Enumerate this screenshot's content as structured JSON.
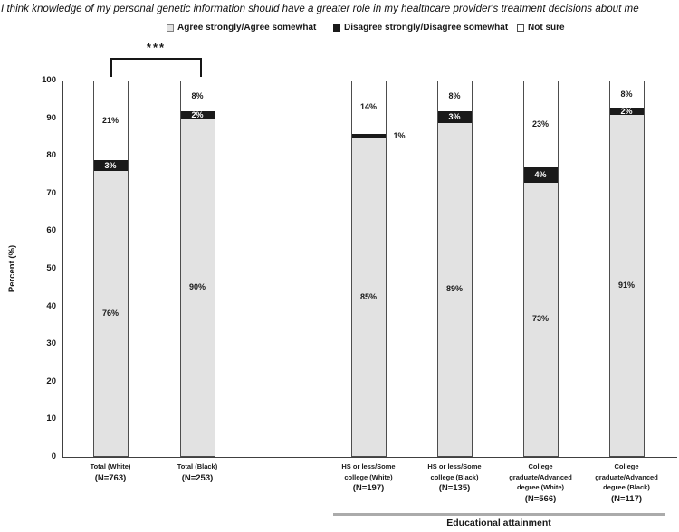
{
  "chart_data": {
    "type": "bar",
    "stacked": true,
    "title": "I think knowledge of my personal genetic information should have a greater role in my healthcare provider's treatment decisions about me",
    "ylabel": "Percent (%)",
    "xlabel": "",
    "ylim": [
      0,
      100
    ],
    "yticks": [
      0,
      10,
      20,
      30,
      40,
      50,
      60,
      70,
      80,
      90,
      100
    ],
    "grid": false,
    "legend_position": "top",
    "segments": [
      {
        "key": "agree",
        "label": "Agree strongly/Agree somewhat",
        "color": "#e2e2e2"
      },
      {
        "key": "disagree",
        "label": "Disagree strongly/Disagree somewhat",
        "color": "#1a1a1a"
      },
      {
        "key": "not_sure",
        "label": "Not sure",
        "color": "#ffffff"
      }
    ],
    "bars": [
      {
        "category": "Total (White)",
        "display_lines": "Total (White)",
        "n_label": "(N=763)",
        "values": {
          "agree": 76,
          "disagree": 3,
          "not_sure": 21
        },
        "labels": {
          "agree": "76%",
          "disagree": "3%",
          "not_sure": "21%"
        }
      },
      {
        "category": "Total (Black)",
        "display_lines": "Total (Black)",
        "n_label": "(N=253)",
        "values": {
          "agree": 90,
          "disagree": 2,
          "not_sure": 8
        },
        "labels": {
          "agree": "90%",
          "disagree": "2%",
          "not_sure": "8%"
        }
      },
      {
        "category": "HS or less/Some college (White)",
        "display_lines": "HS or less/Some\ncollege (White)",
        "n_label": "(N=197)",
        "values": {
          "agree": 85,
          "disagree": 1,
          "not_sure": 14
        },
        "labels": {
          "agree": "85%",
          "disagree": "1%",
          "not_sure": "14%"
        },
        "outside_label": "disagree"
      },
      {
        "category": "HS or less/Some college (Black)",
        "display_lines": "HS or less/Some\ncollege (Black)",
        "n_label": "(N=135)",
        "values": {
          "agree": 89,
          "disagree": 3,
          "not_sure": 8
        },
        "labels": {
          "agree": "89%",
          "disagree": "3%",
          "not_sure": "8%"
        }
      },
      {
        "category": "College graduate/Advanced degree (White)",
        "display_lines": "College\ngraduate/Advanced\ndegree (White)",
        "n_label": "(N=566)",
        "values": {
          "agree": 73,
          "disagree": 4,
          "not_sure": 23
        },
        "labels": {
          "agree": "73%",
          "disagree": "4%",
          "not_sure": "23%"
        }
      },
      {
        "category": "College graduate/Advanced degree (Black)",
        "display_lines": "College\ngraduate/Advanced\ndegree (Black)",
        "n_label": "(N=117)",
        "values": {
          "agree": 91,
          "disagree": 2,
          "not_sure": 8
        },
        "labels": {
          "agree": "91%",
          "disagree": "2%",
          "not_sure": "8%"
        }
      }
    ],
    "annotations": [
      {
        "type": "significance-bracket",
        "text": "***",
        "between": [
          "Total (White)",
          "Total (Black)"
        ]
      }
    ],
    "group": {
      "label": "Educational attainment",
      "bar_indexes": [
        2,
        3,
        4,
        5
      ]
    },
    "colors": {
      "agree_fill": "#e2e2e2",
      "disagree_fill": "#1a1a1a",
      "not_sure_fill": "#ffffff",
      "bar_border": "#4d4d4d",
      "axis": "#404040",
      "group_line": "#ababab"
    }
  }
}
